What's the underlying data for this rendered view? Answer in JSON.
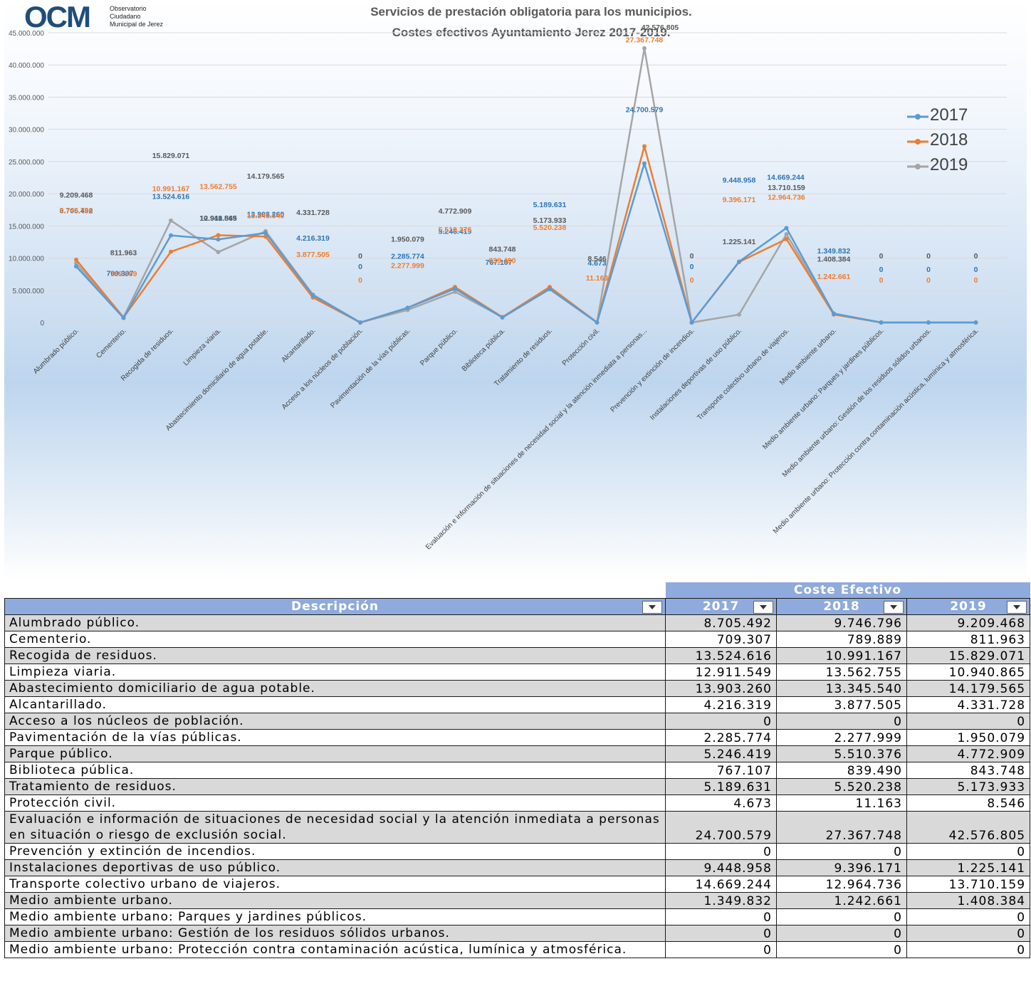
{
  "logo": {
    "mark": "OCM",
    "line1": "Observatorio",
    "line2": "Ciudadano",
    "line3": "Municipal de Jerez"
  },
  "chart_data": {
    "type": "line",
    "title": "Servicios de prestación obligatoria para los municipios.",
    "subtitle": "Costes efectivos Ayuntamiento Jerez 2017-2019.",
    "ylim": [
      0,
      45000000
    ],
    "yticks": [
      "0",
      "5.000.000",
      "10.000.000",
      "15.000.000",
      "20.000.000",
      "25.000.000",
      "30.000.000",
      "35.000.000",
      "40.000.000",
      "45.000.000"
    ],
    "legend_position": "right",
    "categories": [
      "Alumbrado público.",
      "Cementerio.",
      "Recogida de residuos.",
      "Limpieza viaria.",
      "Abastecimiento domiciliario de agua potable.",
      "Alcantarillado.",
      "Acceso a los núcleos de población.",
      "Pavimentación de la vías públicas.",
      "Parque público.",
      "Biblioteca pública.",
      "Tratamiento de residuos.",
      "Protección civil.",
      "Evaluación e información de situaciones de necesidad social y la atención inmediata a personas...",
      "Prevención y extinción de incendios.",
      "Instalaciones deportivas de uso público.",
      "Transporte colectivo urbano de viajeros.",
      "Medio ambiente urbano.",
      "Medio ambiente urbano: Parques y jardines públicos.",
      "Medio ambiente urbano: Gestión de los residuos sólidos urbanos.",
      "Medio ambiente urbano: Protección contra contaminación acústica, lumínica y atmosférica."
    ],
    "series": [
      {
        "name": "2017",
        "color": "#5b9bd5",
        "label_color": "#2e75b6",
        "values": [
          8705492,
          709307,
          13524616,
          12911549,
          13903260,
          4216319,
          0,
          2285774,
          5246419,
          767107,
          5189631,
          4673,
          24700579,
          0,
          9448958,
          14669244,
          1349832,
          0,
          0,
          0
        ],
        "labels": [
          "8.705.492",
          "709.307",
          "13.524.616",
          "12.911.549",
          "13.903.260",
          "4.216.319",
          "0",
          "2.285.774",
          "5.246.419",
          "767.107",
          "5.189.631",
          "4.673",
          "24.700.579",
          "0",
          "9.448.958",
          "14.669.244",
          "1.349.832",
          "0",
          "0",
          "0"
        ]
      },
      {
        "name": "2018",
        "color": "#ed7d31",
        "label_color": "#ed7d31",
        "values": [
          9746796,
          789889,
          10991167,
          13562755,
          13345540,
          3877505,
          0,
          2277999,
          5510376,
          839490,
          5520238,
          11163,
          27367748,
          0,
          9396171,
          12964736,
          1242661,
          0,
          0,
          0
        ],
        "labels": [
          "9.746.796",
          "789.889",
          "10.991.167",
          "13.562.755",
          "13.345.540",
          "3.877.505",
          "0",
          "2.277.999",
          "5.510.376",
          "839.490",
          "5.520.238",
          "11.163",
          "27.367.748",
          "0",
          "9.396.171",
          "12.964.736",
          "1.242.661",
          "0",
          "0",
          "0"
        ]
      },
      {
        "name": "2019",
        "color": "#a5a5a5",
        "label_color": "#595959",
        "values": [
          9209468,
          811963,
          15829071,
          10940865,
          14179565,
          4331728,
          0,
          1950079,
          4772909,
          843748,
          5173933,
          8546,
          42576805,
          0,
          1225141,
          13710159,
          1408384,
          0,
          0,
          0
        ],
        "labels": [
          "9.209.468",
          "811.963",
          "15.829.071",
          "10.940.865",
          "14.179.565",
          "4.331.728",
          "0",
          "1.950.079",
          "4.772.909",
          "843.748",
          "5.173.933",
          "8.546",
          "42.576.805",
          "0",
          "1.225.141",
          "13.710.159",
          "1.408.384",
          "0",
          "0",
          "0"
        ]
      }
    ]
  },
  "table": {
    "group_header": "Coste Efectivo",
    "headers": [
      "Descripción",
      "2017",
      "2018",
      "2019"
    ],
    "rows": [
      [
        "Alumbrado público.",
        "8.705.492",
        "9.746.796",
        "9.209.468"
      ],
      [
        "Cementerio.",
        "709.307",
        "789.889",
        "811.963"
      ],
      [
        "Recogida de residuos.",
        "13.524.616",
        "10.991.167",
        "15.829.071"
      ],
      [
        "Limpieza viaria.",
        "12.911.549",
        "13.562.755",
        "10.940.865"
      ],
      [
        "Abastecimiento domiciliario de agua potable.",
        "13.903.260",
        "13.345.540",
        "14.179.565"
      ],
      [
        "Alcantarillado.",
        "4.216.319",
        "3.877.505",
        "4.331.728"
      ],
      [
        "Acceso a los núcleos de población.",
        "0",
        "0",
        "0"
      ],
      [
        "Pavimentación de la vías públicas.",
        "2.285.774",
        "2.277.999",
        "1.950.079"
      ],
      [
        "Parque público.",
        "5.246.419",
        "5.510.376",
        "4.772.909"
      ],
      [
        "Biblioteca pública.",
        "767.107",
        "839.490",
        "843.748"
      ],
      [
        "Tratamiento de residuos.",
        "5.189.631",
        "5.520.238",
        "5.173.933"
      ],
      [
        "Protección civil.",
        "4.673",
        "11.163",
        "8.546"
      ],
      [
        "Evaluación e información de situaciones de necesidad social y la atención inmediata a personas en situación o riesgo de exclusión social.",
        "24.700.579",
        "27.367.748",
        "42.576.805"
      ],
      [
        "Prevención y extinción de incendios.",
        "0",
        "0",
        "0"
      ],
      [
        "Instalaciones deportivas de uso público.",
        "9.448.958",
        "9.396.171",
        "1.225.141"
      ],
      [
        "Transporte colectivo urbano de viajeros.",
        "14.669.244",
        "12.964.736",
        "13.710.159"
      ],
      [
        "Medio ambiente urbano.",
        "1.349.832",
        "1.242.661",
        "1.408.384"
      ],
      [
        "Medio ambiente urbano: Parques y jardines públicos.",
        "0",
        "0",
        "0"
      ],
      [
        "Medio ambiente urbano: Gestión de los residuos sólidos urbanos.",
        "0",
        "0",
        "0"
      ],
      [
        "Medio ambiente urbano: Protección contra contaminación acústica, lumínica y atmosférica.",
        "0",
        "0",
        "0"
      ]
    ]
  }
}
